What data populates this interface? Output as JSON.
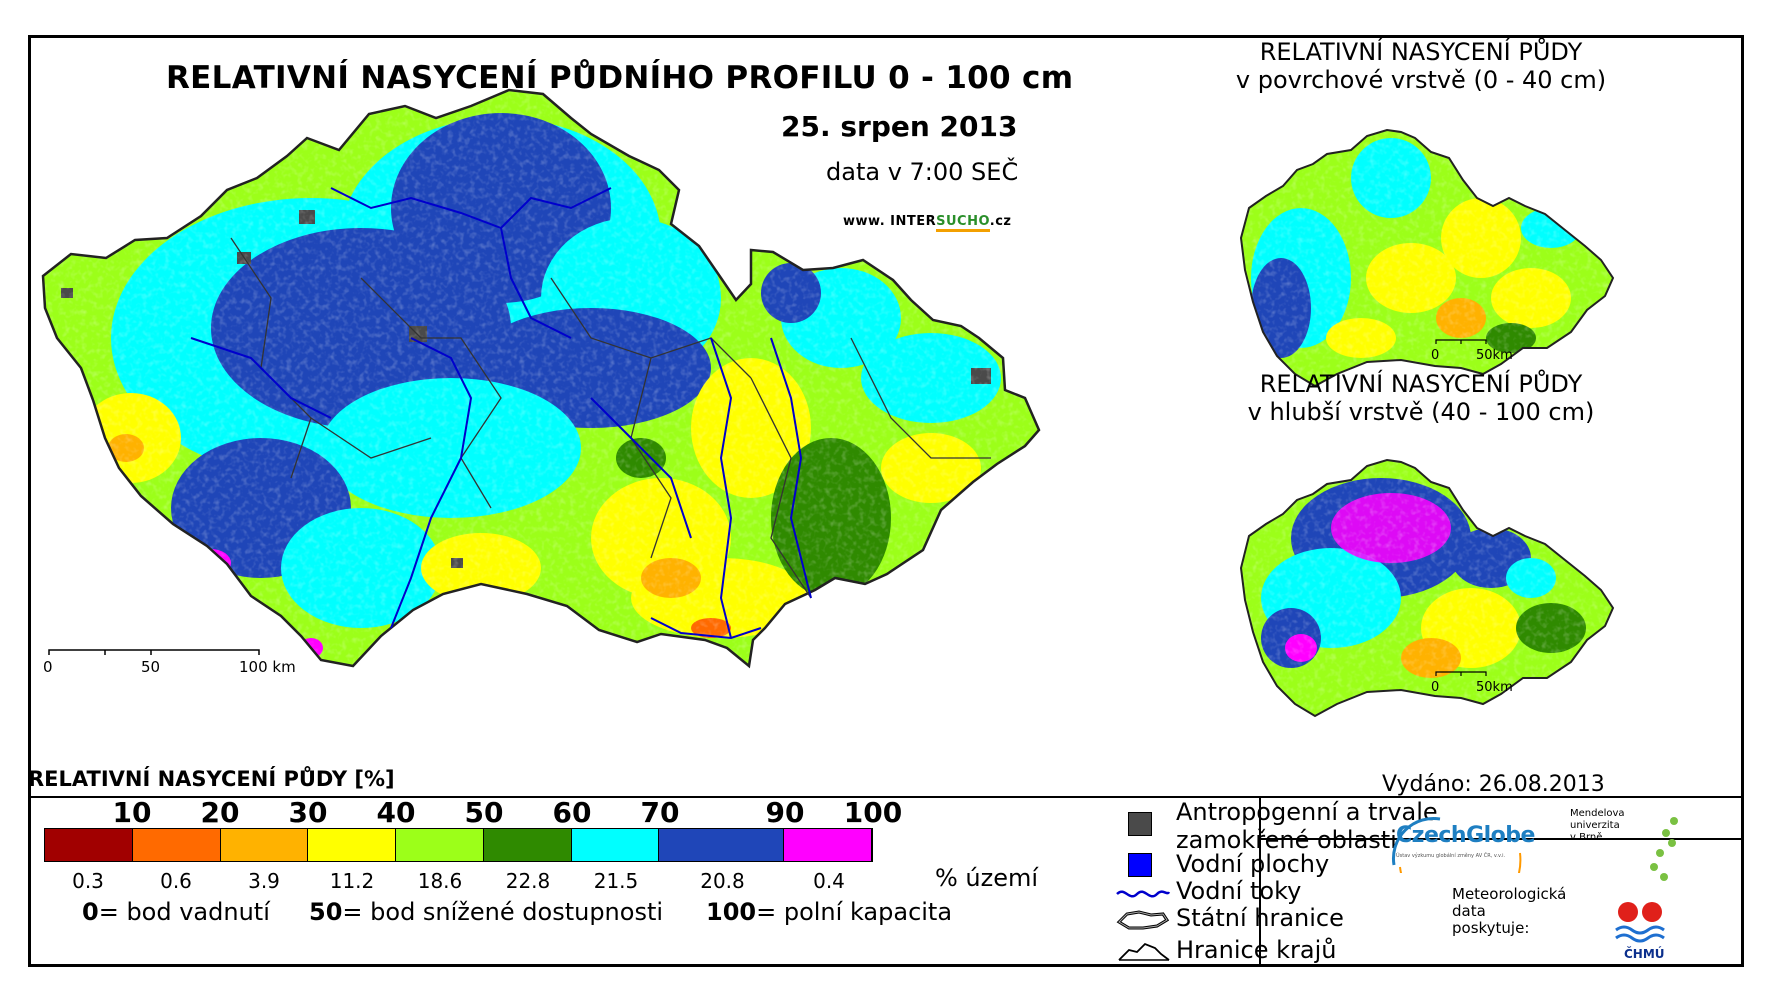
{
  "header": {
    "title": "RELATIVNÍ NASYCENÍ PŮDNÍHO PROFILU 0 - 100 cm",
    "date": "25. srpen 2013",
    "time_note": "data v 7:00 SEČ",
    "url_prefix": "www. INTER",
    "url_highlight": "SUCHO",
    "url_suffix": ".cz"
  },
  "main_map": {
    "scale": {
      "zero": "0",
      "mid": "50",
      "end": "100 km"
    }
  },
  "inset_top": {
    "title_line1": "RELATIVNÍ NASYCENÍ PŮDY",
    "title_line2": "v povrchové vrstvě (0 - 40 cm)",
    "scale": {
      "zero": "0",
      "end": "50km"
    }
  },
  "inset_bottom": {
    "title_line1": "RELATIVNÍ NASYCENÍ PŮDY",
    "title_line2": "v hlubší vrstvě (40 - 100 cm)",
    "scale": {
      "zero": "0",
      "end": "50km"
    }
  },
  "legend": {
    "title": "RELATIVNÍ NASYCENÍ PŮDY [%]",
    "class_breaks": [
      "10",
      "20",
      "30",
      "40",
      "50",
      "60",
      "70",
      "90",
      "100"
    ],
    "colors": [
      "#a10000",
      "#ff6a00",
      "#ffb200",
      "#ffff00",
      "#9cff19",
      "#2f8a00",
      "#00ffff",
      "#1f46b8",
      "#ff00ff"
    ],
    "area_percent": [
      "0.3",
      "0.6",
      "3.9",
      "11.2",
      "18.6",
      "22.8",
      "21.5",
      "20.8",
      "0.4"
    ],
    "area_unit": "% území",
    "note_0_value": "0",
    "note_0_text": "= bod vadnutí",
    "note_50_value": "50",
    "note_50_text": "= bod snížené dostupnosti",
    "note_100_value": "100",
    "note_100_text": "= polní kapacita"
  },
  "symbols": {
    "anthropogenic_line1": "Antropogenní a trvale",
    "anthropogenic_line2": "zamokřené oblasti",
    "anthropogenic_color": "#4a4a4a",
    "water_bodies": "Vodní plochy",
    "water_color": "#0000ff",
    "rivers": "Vodní toky",
    "river_color": "#0000cc",
    "state_border": "Státní hranice",
    "region_border": "Hranice krajů"
  },
  "footer": {
    "issued": "Vydáno: 26.08.2013",
    "czechglobe": "CzechGlobe",
    "czechglobe_sub": "Ústav výzkumu globální změny AV ČR, v.v.i.",
    "mendel_line1": "Mendelova",
    "mendel_line2": "univerzita",
    "mendel_line3": "v Brně",
    "meteo_line1": "Meteorologická",
    "meteo_line2": "data",
    "meteo_line3": "poskytuje:",
    "chmu": "ČHMÚ"
  }
}
